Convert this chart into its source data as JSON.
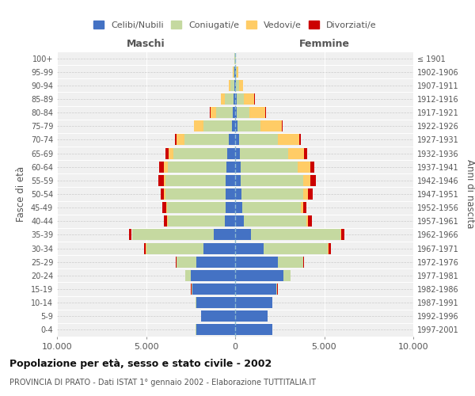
{
  "age_groups": [
    "0-4",
    "5-9",
    "10-14",
    "15-19",
    "20-24",
    "25-29",
    "30-34",
    "35-39",
    "40-44",
    "45-49",
    "50-54",
    "55-59",
    "60-64",
    "65-69",
    "70-74",
    "75-79",
    "80-84",
    "85-89",
    "90-94",
    "95-99",
    "100+"
  ],
  "birth_years": [
    "1997-2001",
    "1992-1996",
    "1987-1991",
    "1982-1986",
    "1977-1981",
    "1972-1976",
    "1967-1971",
    "1962-1966",
    "1957-1961",
    "1952-1956",
    "1947-1951",
    "1942-1946",
    "1937-1941",
    "1932-1936",
    "1927-1931",
    "1922-1926",
    "1917-1921",
    "1912-1916",
    "1907-1911",
    "1902-1906",
    "≤ 1901"
  ],
  "males": {
    "celibi": [
      2200,
      1900,
      2200,
      2400,
      2500,
      2200,
      1800,
      1200,
      600,
      540,
      530,
      520,
      500,
      450,
      350,
      200,
      150,
      100,
      60,
      30,
      20
    ],
    "coniugati": [
      5,
      5,
      10,
      60,
      300,
      1100,
      3200,
      4600,
      3200,
      3300,
      3400,
      3400,
      3300,
      3000,
      2500,
      1600,
      900,
      500,
      200,
      60,
      30
    ],
    "vedovi": [
      0,
      0,
      0,
      5,
      5,
      5,
      10,
      20,
      20,
      40,
      60,
      100,
      200,
      300,
      450,
      500,
      350,
      200,
      80,
      30,
      10
    ],
    "divorziati": [
      0,
      0,
      0,
      5,
      10,
      30,
      100,
      150,
      200,
      200,
      200,
      280,
      250,
      150,
      80,
      20,
      15,
      10,
      5,
      0,
      0
    ]
  },
  "females": {
    "nubili": [
      2100,
      1800,
      2100,
      2300,
      2700,
      2400,
      1600,
      900,
      500,
      380,
      340,
      320,
      300,
      280,
      200,
      130,
      100,
      80,
      60,
      30,
      20
    ],
    "coniugate": [
      5,
      5,
      10,
      70,
      400,
      1400,
      3600,
      5000,
      3500,
      3300,
      3500,
      3500,
      3200,
      2700,
      2200,
      1300,
      700,
      400,
      150,
      50,
      20
    ],
    "vedove": [
      0,
      0,
      0,
      5,
      5,
      10,
      30,
      50,
      80,
      130,
      250,
      400,
      700,
      900,
      1200,
      1200,
      900,
      600,
      250,
      80,
      20
    ],
    "divorziate": [
      0,
      0,
      0,
      5,
      15,
      40,
      150,
      200,
      250,
      200,
      250,
      300,
      250,
      150,
      100,
      30,
      15,
      10,
      5,
      0,
      0
    ]
  },
  "colors": {
    "celibi": "#4472C4",
    "coniugati": "#C5D9A0",
    "vedovi": "#FFCC66",
    "divorziati": "#CC0000"
  },
  "legend_labels": [
    "Celibi/Nubili",
    "Coniugati/e",
    "Vedovi/e",
    "Divorziati/e"
  ],
  "title": "Popolazione per età, sesso e stato civile - 2002",
  "subtitle": "PROVINCIA DI PRATO - Dati ISTAT 1° gennaio 2002 - Elaborazione TUTTITALIA.IT",
  "xlabel_left": "Maschi",
  "xlabel_right": "Femmine",
  "ylabel_left": "Fasce di età",
  "ylabel_right": "Anni di nascita",
  "xlim": 10000,
  "xticks": [
    -10000,
    -5000,
    0,
    5000,
    10000
  ],
  "xticklabels": [
    "10.000",
    "5.000",
    "0",
    "5.000",
    "10.000"
  ],
  "bg_color": "#FFFFFF",
  "plot_bg": "#F0F0F0"
}
